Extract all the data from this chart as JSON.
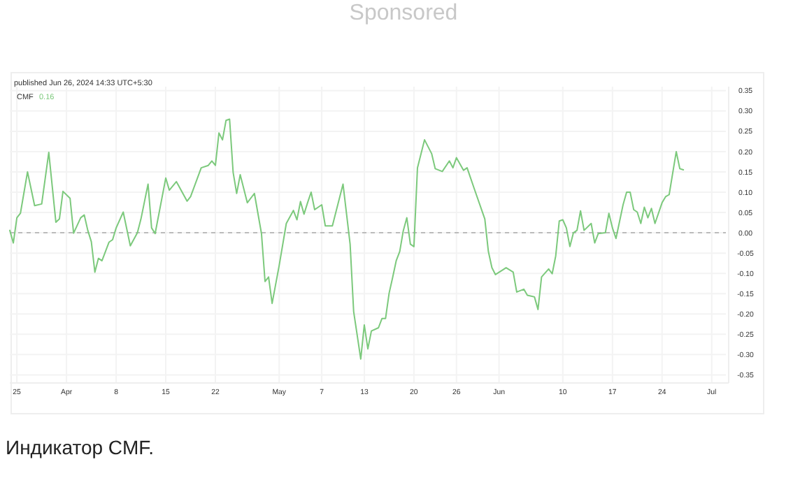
{
  "chart_data": {
    "type": "line",
    "subtitle": "published Jun 26, 2024 14:33 UTC+5:30",
    "annotations": [
      "Sponsored",
      "0.16",
      "Индикатор CMF."
    ],
    "legend": "top left",
    "grid": true,
    "xlim": [
      "2024-03-24",
      "2024-07-03"
    ],
    "xticks": [
      {
        "value": "2024-03-25",
        "label": "25"
      },
      {
        "value": "2024-04-01",
        "label": "Apr"
      },
      {
        "value": "2024-04-08",
        "label": "8"
      },
      {
        "value": "2024-04-15",
        "label": "15"
      },
      {
        "value": "2024-04-22",
        "label": "22"
      },
      {
        "value": "2024-05-01",
        "label": "May"
      },
      {
        "value": "2024-05-07",
        "label": "7"
      },
      {
        "value": "2024-05-13",
        "label": "13"
      },
      {
        "value": "2024-05-20",
        "label": "20"
      },
      {
        "value": "2024-05-26",
        "label": "26"
      },
      {
        "value": "2024-06-01",
        "label": "Jun"
      },
      {
        "value": "2024-06-10",
        "label": "10"
      },
      {
        "value": "2024-06-17",
        "label": "17"
      },
      {
        "value": "2024-06-24",
        "label": "24"
      },
      {
        "value": "2024-07-01",
        "label": "Jul"
      }
    ],
    "ylim": [
      -0.37,
      0.36
    ],
    "yticks": [
      {
        "value": 0.35,
        "label": "0.35"
      },
      {
        "value": 0.3,
        "label": "0.30"
      },
      {
        "value": 0.25,
        "label": "0.25"
      },
      {
        "value": 0.2,
        "label": "0.20"
      },
      {
        "value": 0.15,
        "label": "0.15"
      },
      {
        "value": 0.1,
        "label": "0.10"
      },
      {
        "value": 0.05,
        "label": "0.05"
      },
      {
        "value": 0,
        "label": "0.00"
      },
      {
        "value": -0.05,
        "label": "-0.05"
      },
      {
        "value": -0.1,
        "label": "-0.10"
      },
      {
        "value": -0.15,
        "label": "-0.15"
      },
      {
        "value": -0.2,
        "label": "-0.20"
      },
      {
        "value": -0.25,
        "label": "-0.25"
      },
      {
        "value": -0.3,
        "label": "-0.30"
      },
      {
        "value": -0.35,
        "label": "-0.35"
      }
    ],
    "ref_lines": [
      {
        "axis": "y",
        "value": 0,
        "color": "#bbbbbb",
        "line_style": "dashed"
      }
    ],
    "series": [
      {
        "name": "CMF",
        "color": "#7cc97c",
        "x": [
          "2024-03-24",
          "2024-03-24T12:00",
          "2024-03-25",
          "2024-03-25T12:00",
          "2024-03-26T12:00",
          "2024-03-27T12:00",
          "2024-03-28T12:00",
          "2024-03-29T12:00",
          "2024-03-30T12:00",
          "2024-03-31",
          "2024-03-31T12:00",
          "2024-04-01T12:00",
          "2024-04-02",
          "2024-04-03",
          "2024-04-03T12:00",
          "2024-04-04",
          "2024-04-04T12:00",
          "2024-04-05",
          "2024-04-05T12:00",
          "2024-04-06",
          "2024-04-07",
          "2024-04-07T12:00",
          "2024-04-08",
          "2024-04-09",
          "2024-04-10",
          "2024-04-11",
          "2024-04-11T12:00",
          "2024-04-12T12:00",
          "2024-04-13",
          "2024-04-13T12:00",
          "2024-04-15",
          "2024-04-15T12:00",
          "2024-04-16T12:00",
          "2024-04-18",
          "2024-04-18T12:00",
          "2024-04-20",
          "2024-04-21",
          "2024-04-21T12:00",
          "2024-04-22",
          "2024-04-22T12:00",
          "2024-04-23",
          "2024-04-23T12:00",
          "2024-04-24",
          "2024-04-24T12:00",
          "2024-04-25",
          "2024-04-25T12:00",
          "2024-04-26T12:00",
          "2024-04-27T12:00",
          "2024-04-28T12:00",
          "2024-04-29",
          "2024-04-29T12:00",
          "2024-04-30",
          "2024-05-01",
          "2024-05-02",
          "2024-05-03",
          "2024-05-03T12:00",
          "2024-05-04",
          "2024-05-04T12:00",
          "2024-05-05",
          "2024-05-05T12:00",
          "2024-05-06",
          "2024-05-07",
          "2024-05-07T12:00",
          "2024-05-08T12:00",
          "2024-05-10",
          "2024-05-11",
          "2024-05-11T12:00",
          "2024-05-12T12:00",
          "2024-05-13",
          "2024-05-13T12:00",
          "2024-05-14",
          "2024-05-15",
          "2024-05-15T12:00",
          "2024-05-16",
          "2024-05-16T12:00",
          "2024-05-17",
          "2024-05-17T12:00",
          "2024-05-18",
          "2024-05-18T12:00",
          "2024-05-19",
          "2024-05-19T12:00",
          "2024-05-20",
          "2024-05-20T12:00",
          "2024-05-21T12:00",
          "2024-05-22T12:00",
          "2024-05-23",
          "2024-05-24",
          "2024-05-25",
          "2024-05-25T12:00",
          "2024-05-26",
          "2024-05-27",
          "2024-05-27T12:00",
          "2024-05-28T12:00",
          "2024-05-30",
          "2024-05-30T12:00",
          "2024-05-31",
          "2024-05-31T12:00",
          "2024-06-02",
          "2024-06-03",
          "2024-06-03T12:00",
          "2024-06-04T12:00",
          "2024-06-05",
          "2024-06-06",
          "2024-06-06T12:00",
          "2024-06-07",
          "2024-06-08",
          "2024-06-08T12:00",
          "2024-06-09",
          "2024-06-09T12:00",
          "2024-06-10",
          "2024-06-10T12:00",
          "2024-06-11",
          "2024-06-11T12:00",
          "2024-06-12",
          "2024-06-12T12:00",
          "2024-06-13",
          "2024-06-14",
          "2024-06-14T12:00",
          "2024-06-15",
          "2024-06-16",
          "2024-06-16T12:00",
          "2024-06-17",
          "2024-06-17T12:00",
          "2024-06-18T12:00",
          "2024-06-19",
          "2024-06-19T12:00",
          "2024-06-20",
          "2024-06-20T12:00",
          "2024-06-21",
          "2024-06-21T12:00",
          "2024-06-22",
          "2024-06-22T12:00",
          "2024-06-23",
          "2024-06-24",
          "2024-06-24T12:00",
          "2024-06-25",
          "2024-06-26",
          "2024-06-26T12:00",
          "2024-06-27"
        ],
        "values": [
          0.006,
          -0.025,
          0.037,
          0.048,
          0.15,
          0.067,
          0.071,
          0.198,
          0.026,
          0.034,
          0.102,
          0.085,
          -0.001,
          0.037,
          0.044,
          0.006,
          -0.022,
          -0.097,
          -0.063,
          -0.069,
          -0.023,
          -0.017,
          0.012,
          0.051,
          -0.032,
          0,
          0.034,
          0.12,
          0.012,
          -0.002,
          0.135,
          0.105,
          0.126,
          0.078,
          0.089,
          0.16,
          0.166,
          0.177,
          0.166,
          0.246,
          0.229,
          0.277,
          0.28,
          0.149,
          0.097,
          0.143,
          0.074,
          0.097,
          -0.002,
          -0.12,
          -0.109,
          -0.174,
          -0.08,
          0.023,
          0.055,
          0.032,
          0.077,
          0.046,
          0.074,
          0.1,
          0.057,
          0.069,
          0.017,
          0.017,
          0.12,
          -0.028,
          -0.194,
          -0.311,
          -0.227,
          -0.286,
          -0.242,
          -0.234,
          -0.211,
          -0.211,
          -0.149,
          -0.11,
          -0.069,
          -0.046,
          0.005,
          0.037,
          -0.028,
          -0.034,
          0.16,
          0.229,
          0.195,
          0.158,
          0.151,
          0.177,
          0.16,
          0.185,
          0.154,
          0.16,
          0.109,
          0.034,
          -0.046,
          -0.086,
          -0.103,
          -0.086,
          -0.097,
          -0.146,
          -0.139,
          -0.154,
          -0.158,
          -0.189,
          -0.109,
          -0.089,
          -0.101,
          -0.057,
          0.029,
          0.032,
          0.012,
          -0.034,
          0,
          0.006,
          0.054,
          0.006,
          0.023,
          -0.025,
          -0.002,
          0,
          0.048,
          0.012,
          -0.014,
          0.069,
          0.1,
          0.1,
          0.057,
          0.051,
          0.023,
          0.063,
          0.037,
          0.06,
          0.023,
          0.074,
          0.089,
          0.094,
          0.2,
          0.158,
          0.155
        ]
      }
    ]
  }
}
